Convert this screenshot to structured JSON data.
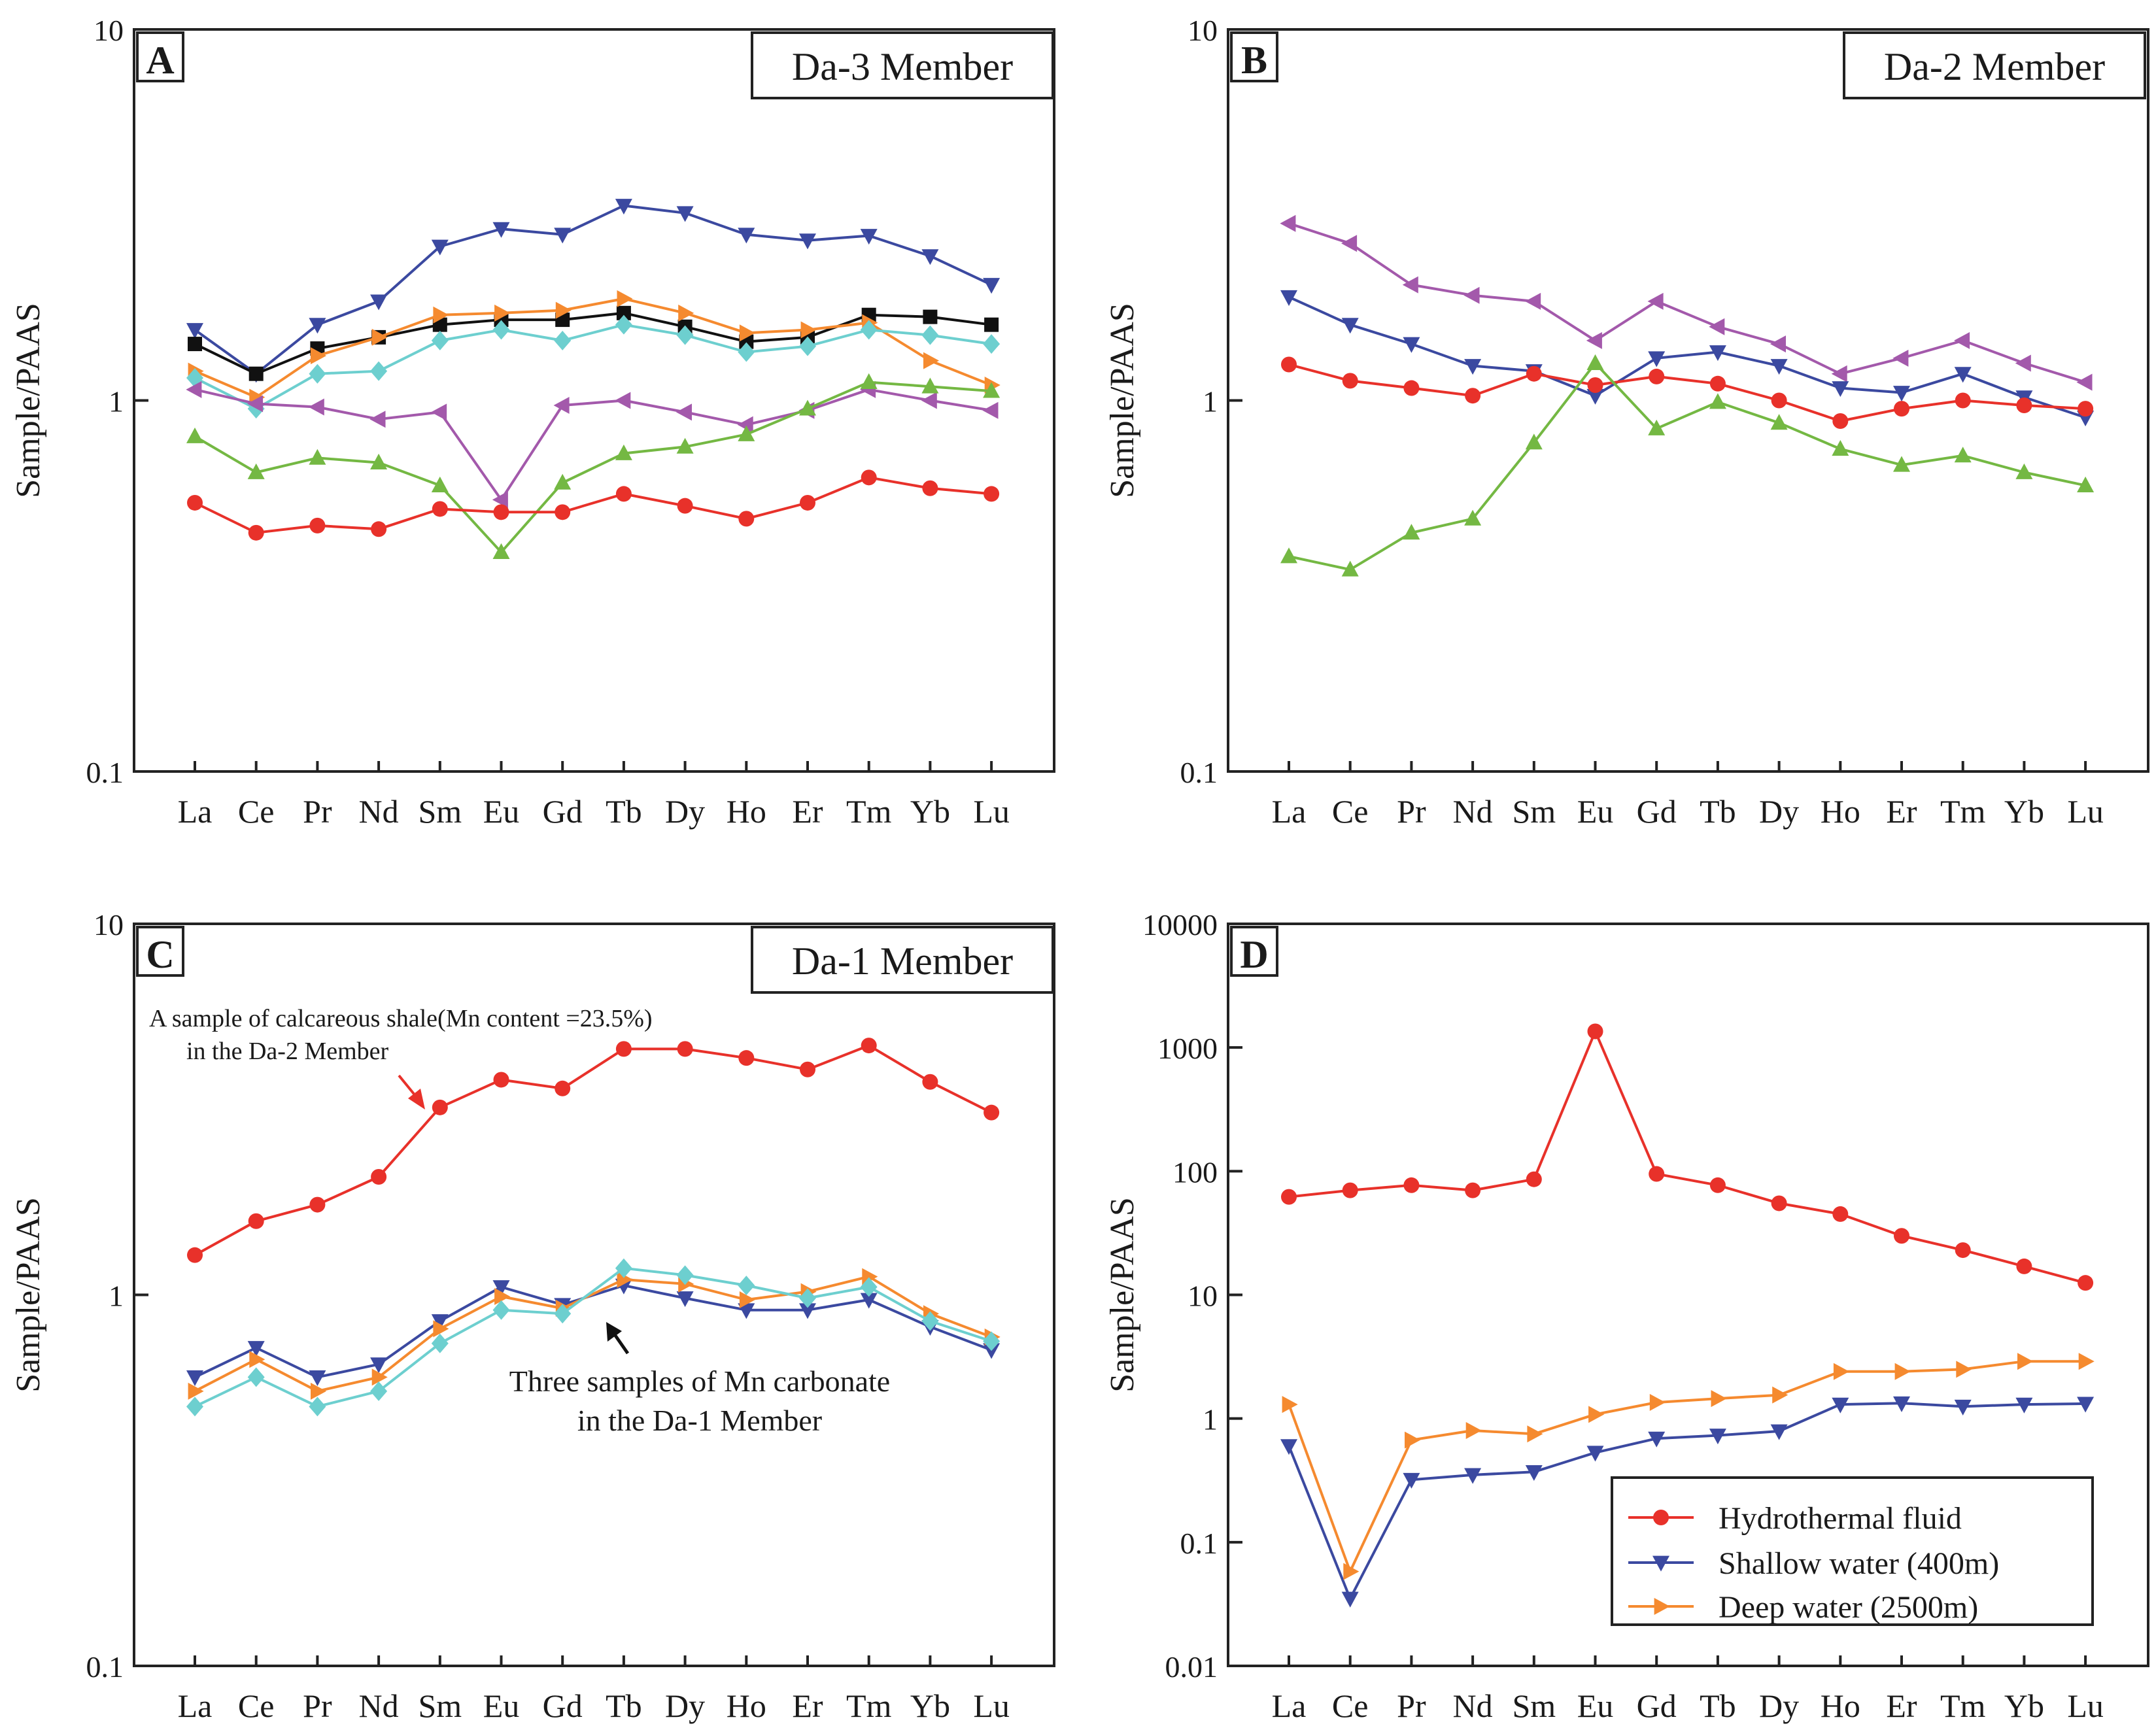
{
  "figure": {
    "y_axis_label": "Sample/PAAS",
    "elements": [
      "La",
      "Ce",
      "Pr",
      "Nd",
      "Sm",
      "Eu",
      "Gd",
      "Tb",
      "Dy",
      "Ho",
      "Er",
      "Tm",
      "Yb",
      "Lu"
    ]
  },
  "colors": {
    "red": "#e8312a",
    "blue": "#3b49a0",
    "green": "#74b843",
    "purple": "#a359ab",
    "orange": "#f58a2f",
    "cyan": "#6dcfcf",
    "black": "#111111",
    "axis": "#222222"
  },
  "annotations": {
    "c_red_note_line1": "A sample of calcareous shale(Mn content =23.5%)",
    "c_red_note_line2": "in the  Da-2 Member",
    "c_mn_note_line1": "Three samples of Mn carbonate",
    "c_mn_note_line2": "in the Da-1 Member"
  },
  "chart_data": [
    {
      "type": "line",
      "panel": "A",
      "title": "Da-3 Member",
      "yscale": "log",
      "ylim": [
        0.1,
        10
      ],
      "yticks": [
        0.1,
        1,
        10
      ],
      "ytick_labels": [
        "0.1",
        "1",
        "10"
      ],
      "ylabel": "Sample/PAAS",
      "categories": [
        "La",
        "Ce",
        "Pr",
        "Nd",
        "Sm",
        "Eu",
        "Gd",
        "Tb",
        "Dy",
        "Ho",
        "Er",
        "Tm",
        "Yb",
        "Lu"
      ],
      "series": [
        {
          "color": "#3b49a0",
          "marker": "triangle-down",
          "values": [
            1.55,
            1.18,
            1.6,
            1.85,
            2.6,
            2.9,
            2.8,
            3.35,
            3.2,
            2.8,
            2.7,
            2.78,
            2.45,
            2.05
          ]
        },
        {
          "color": "#111111",
          "marker": "square",
          "values": [
            1.42,
            1.18,
            1.38,
            1.48,
            1.6,
            1.65,
            1.65,
            1.72,
            1.58,
            1.44,
            1.48,
            1.7,
            1.68,
            1.6
          ]
        },
        {
          "color": "#f58a2f",
          "marker": "triangle-right",
          "values": [
            1.2,
            1.02,
            1.32,
            1.48,
            1.7,
            1.72,
            1.75,
            1.88,
            1.72,
            1.52,
            1.55,
            1.62,
            1.28,
            1.1
          ]
        },
        {
          "color": "#6dcfcf",
          "marker": "diamond",
          "values": [
            1.15,
            0.95,
            1.18,
            1.2,
            1.45,
            1.55,
            1.45,
            1.6,
            1.5,
            1.35,
            1.4,
            1.55,
            1.5,
            1.42
          ]
        },
        {
          "color": "#a359ab",
          "marker": "triangle-left",
          "values": [
            1.07,
            0.98,
            0.96,
            0.89,
            0.93,
            0.54,
            0.97,
            1.0,
            0.93,
            0.86,
            0.94,
            1.07,
            1.0,
            0.94
          ]
        },
        {
          "color": "#74b843",
          "marker": "triangle-up",
          "values": [
            0.8,
            0.64,
            0.7,
            0.68,
            0.59,
            0.39,
            0.6,
            0.72,
            0.75,
            0.81,
            0.95,
            1.12,
            1.09,
            1.06
          ]
        },
        {
          "color": "#e8312a",
          "marker": "circle",
          "values": [
            0.53,
            0.44,
            0.46,
            0.45,
            0.51,
            0.5,
            0.5,
            0.56,
            0.52,
            0.48,
            0.53,
            0.62,
            0.58,
            0.56
          ]
        }
      ]
    },
    {
      "type": "line",
      "panel": "B",
      "title": "Da-2 Member",
      "yscale": "log",
      "ylim": [
        0.1,
        10
      ],
      "yticks": [
        0.1,
        1,
        10
      ],
      "ytick_labels": [
        "0.1",
        "1",
        "10"
      ],
      "ylabel": "Sample/PAAS",
      "categories": [
        "La",
        "Ce",
        "Pr",
        "Nd",
        "Sm",
        "Eu",
        "Gd",
        "Tb",
        "Dy",
        "Ho",
        "Er",
        "Tm",
        "Yb",
        "Lu"
      ],
      "series": [
        {
          "color": "#a359ab",
          "marker": "triangle-left",
          "values": [
            3.0,
            2.65,
            2.05,
            1.92,
            1.85,
            1.45,
            1.85,
            1.58,
            1.42,
            1.18,
            1.3,
            1.45,
            1.26,
            1.12
          ]
        },
        {
          "color": "#3b49a0",
          "marker": "triangle-down",
          "values": [
            1.9,
            1.6,
            1.42,
            1.24,
            1.2,
            1.03,
            1.3,
            1.35,
            1.24,
            1.08,
            1.05,
            1.18,
            1.02,
            0.9
          ]
        },
        {
          "color": "#e8312a",
          "marker": "circle",
          "values": [
            1.25,
            1.13,
            1.08,
            1.03,
            1.18,
            1.1,
            1.16,
            1.11,
            1.0,
            0.88,
            0.95,
            1.0,
            0.97,
            0.95
          ]
        },
        {
          "color": "#74b843",
          "marker": "triangle-up",
          "values": [
            0.38,
            0.35,
            0.44,
            0.48,
            0.77,
            1.26,
            0.84,
            0.99,
            0.87,
            0.74,
            0.67,
            0.71,
            0.64,
            0.59
          ]
        }
      ]
    },
    {
      "type": "line",
      "panel": "C",
      "title": "Da-1 Member",
      "yscale": "log",
      "ylim": [
        0.1,
        10
      ],
      "yticks": [
        0.1,
        1,
        10
      ],
      "ytick_labels": [
        "0.1",
        "1",
        "10"
      ],
      "ylabel": "Sample/PAAS",
      "categories": [
        "La",
        "Ce",
        "Pr",
        "Nd",
        "Sm",
        "Eu",
        "Gd",
        "Tb",
        "Dy",
        "Ho",
        "Er",
        "Tm",
        "Yb",
        "Lu"
      ],
      "series": [
        {
          "color": "#e8312a",
          "marker": "circle",
          "values": [
            1.28,
            1.58,
            1.75,
            2.08,
            3.2,
            3.8,
            3.6,
            4.6,
            4.6,
            4.35,
            4.05,
            4.7,
            3.75,
            3.1
          ]
        },
        {
          "color": "#3b49a0",
          "marker": "triangle-down",
          "values": [
            0.6,
            0.72,
            0.6,
            0.65,
            0.85,
            1.05,
            0.94,
            1.06,
            0.98,
            0.91,
            0.91,
            0.97,
            0.82,
            0.71
          ]
        },
        {
          "color": "#f58a2f",
          "marker": "triangle-right",
          "values": [
            0.55,
            0.67,
            0.55,
            0.6,
            0.81,
            0.99,
            0.92,
            1.1,
            1.07,
            0.97,
            1.02,
            1.12,
            0.89,
            0.77
          ]
        },
        {
          "color": "#6dcfcf",
          "marker": "diamond",
          "values": [
            0.5,
            0.6,
            0.5,
            0.55,
            0.74,
            0.91,
            0.89,
            1.18,
            1.13,
            1.06,
            0.98,
            1.05,
            0.85,
            0.75
          ]
        }
      ]
    },
    {
      "type": "line",
      "panel": "D",
      "title": "",
      "yscale": "log",
      "ylim": [
        0.01,
        10000
      ],
      "yticks": [
        0.01,
        0.1,
        1,
        10,
        100,
        1000,
        10000
      ],
      "ytick_labels": [
        "0.01",
        "0.1",
        "1",
        "10",
        "100",
        "1000",
        "10000"
      ],
      "ylabel": "Sample/PAAS",
      "categories": [
        "La",
        "Ce",
        "Pr",
        "Nd",
        "Sm",
        "Eu",
        "Gd",
        "Tb",
        "Dy",
        "Ho",
        "Er",
        "Tm",
        "Yb",
        "Lu"
      ],
      "legend_position": "bottom-right",
      "series": [
        {
          "name": "Hydrothermal fluid",
          "color": "#e8312a",
          "marker": "circle",
          "values": [
            62,
            70,
            77,
            70,
            86,
            1350,
            95,
            77,
            55,
            45,
            30,
            23,
            17,
            12.5
          ]
        },
        {
          "name": "Shallow water (400m)",
          "color": "#3b49a0",
          "marker": "triangle-down",
          "values": [
            0.6,
            0.035,
            0.32,
            0.35,
            0.37,
            0.53,
            0.69,
            0.73,
            0.79,
            1.3,
            1.33,
            1.25,
            1.3,
            1.32
          ]
        },
        {
          "name": "Deep water (2500m)",
          "color": "#f58a2f",
          "marker": "triangle-right",
          "values": [
            1.3,
            0.058,
            0.67,
            0.8,
            0.75,
            1.08,
            1.35,
            1.45,
            1.55,
            2.4,
            2.4,
            2.5,
            2.9,
            2.9
          ]
        }
      ]
    }
  ]
}
